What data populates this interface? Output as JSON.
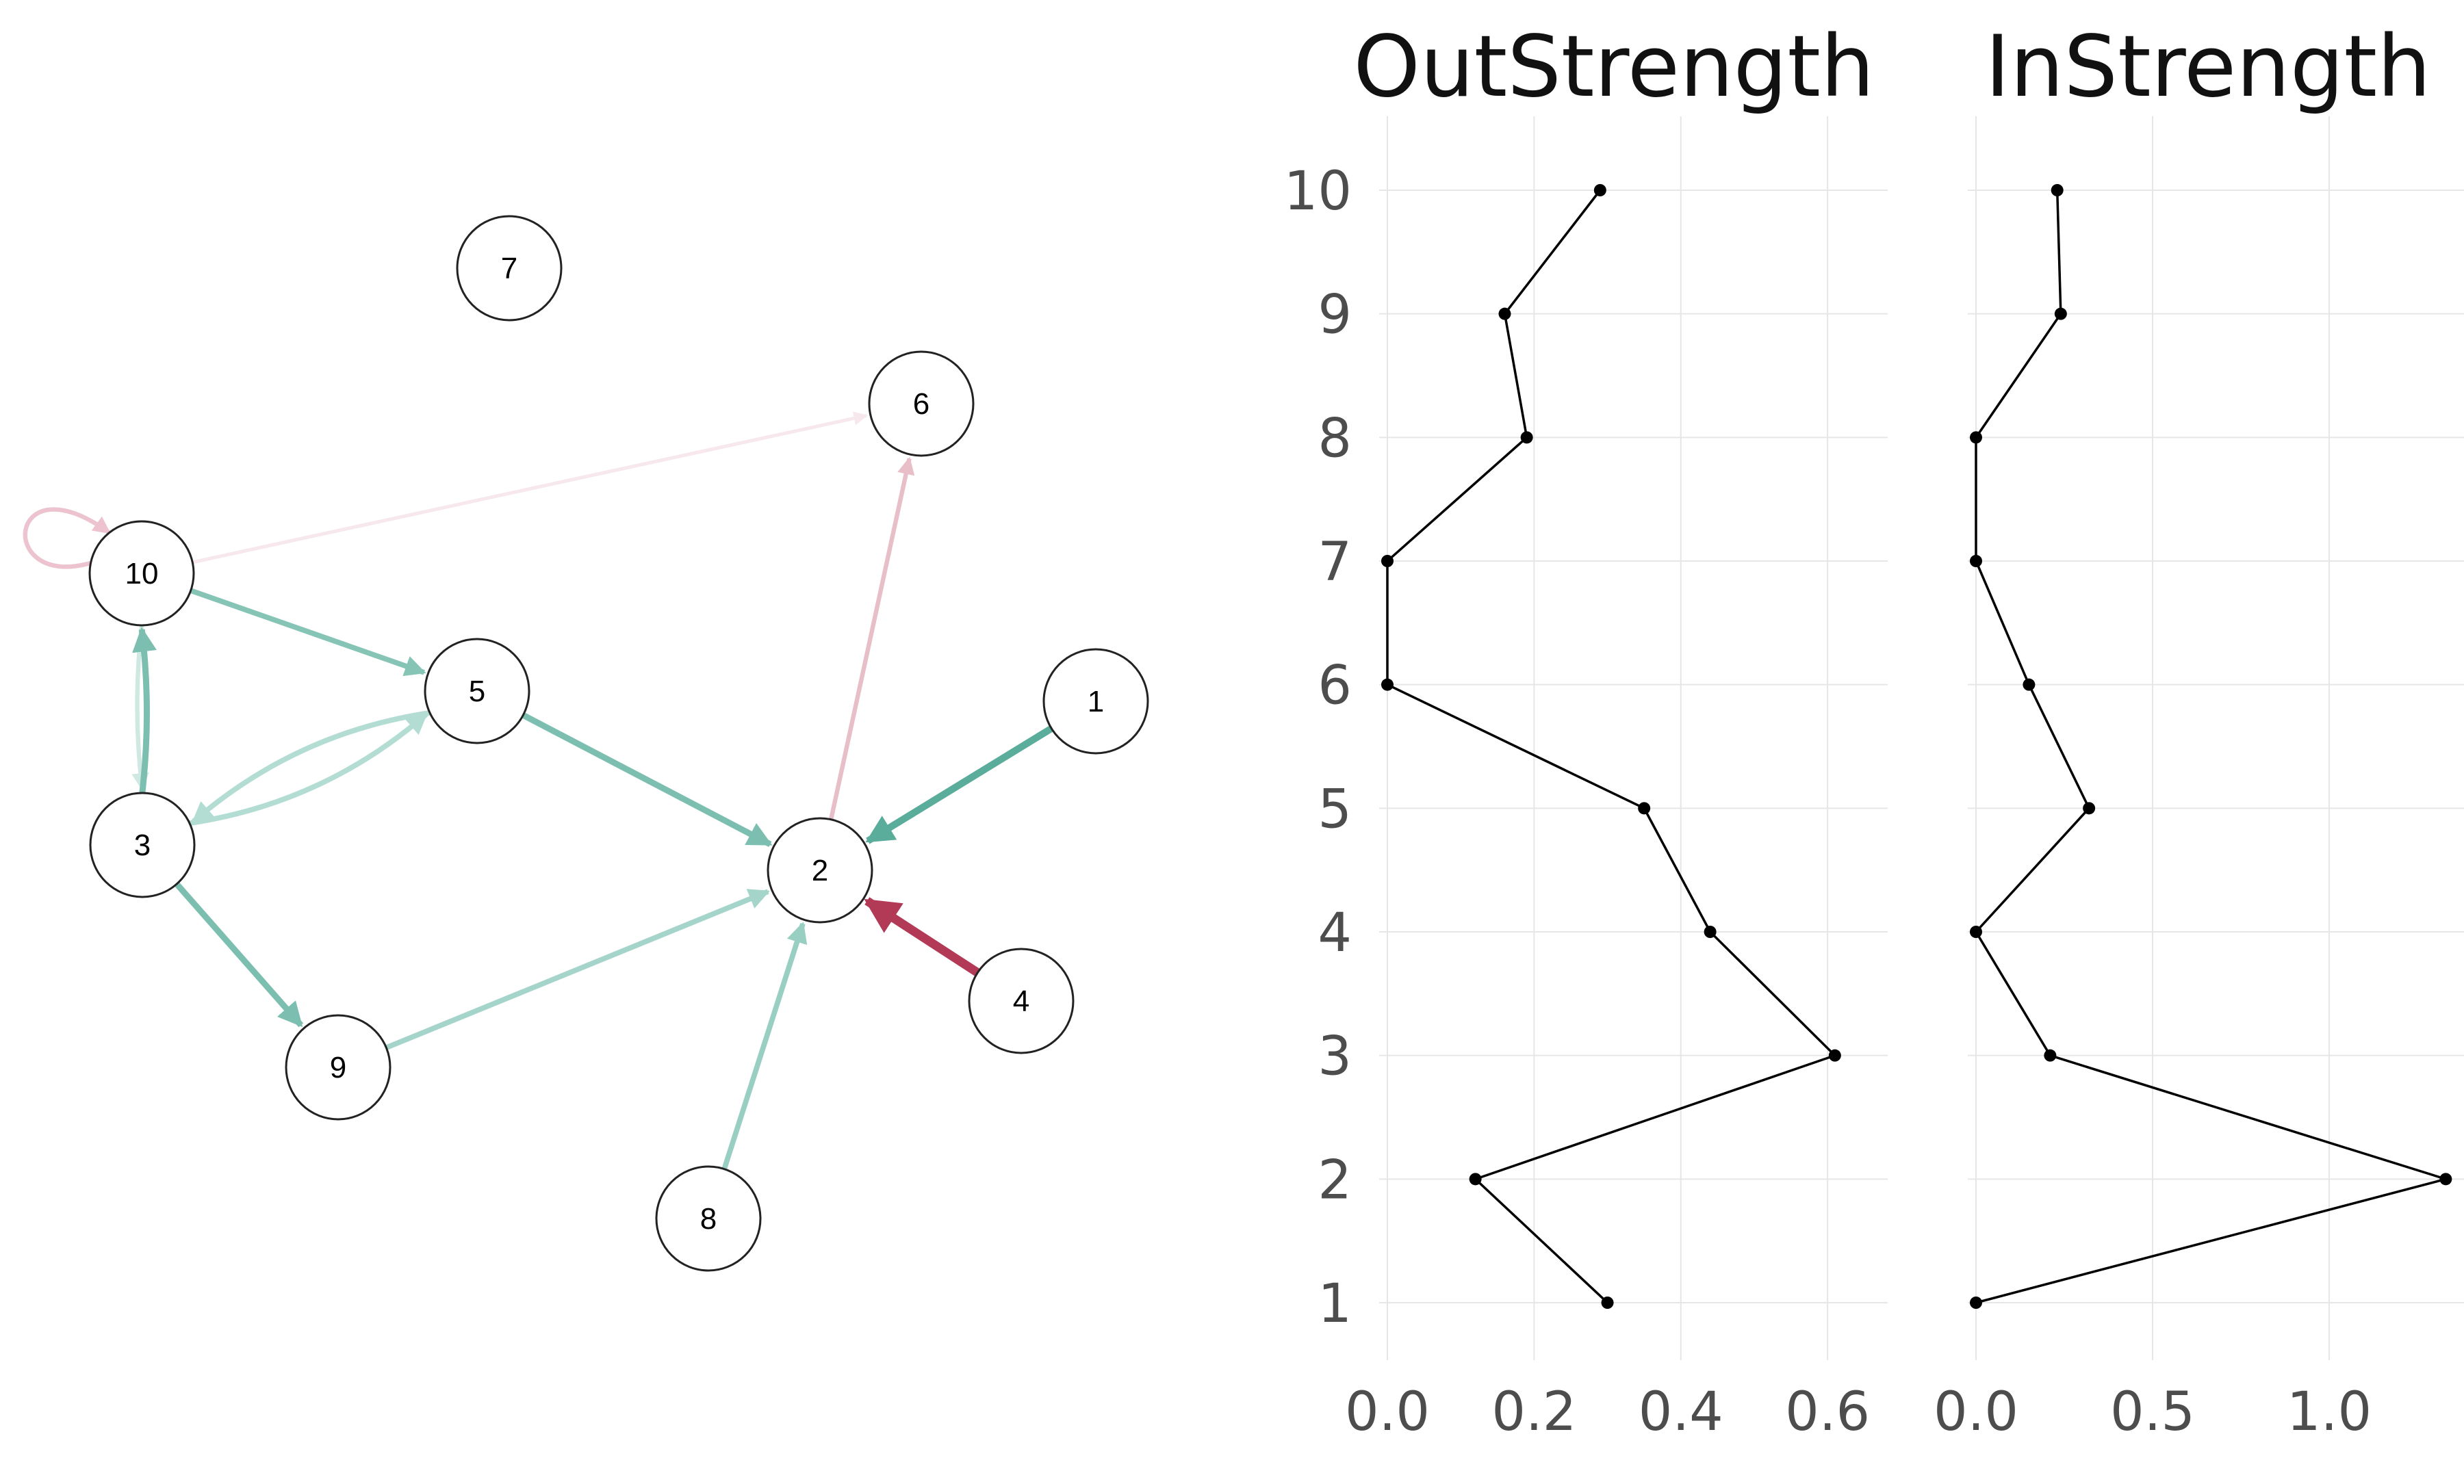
{
  "chart_data": [
    {
      "type": "network",
      "nodes": [
        "1",
        "2",
        "3",
        "4",
        "5",
        "6",
        "7",
        "8",
        "9",
        "10"
      ],
      "edges": [
        {
          "from": "1",
          "to": "2",
          "color": "#5aac9b",
          "weight": 3
        },
        {
          "from": "4",
          "to": "2",
          "color": "#b23a57",
          "weight": 4
        },
        {
          "from": "5",
          "to": "2",
          "color": "#7cbfb0",
          "weight": 2.5
        },
        {
          "from": "9",
          "to": "2",
          "color": "#a5d5ca",
          "weight": 2
        },
        {
          "from": "8",
          "to": "2",
          "color": "#98cfc2",
          "weight": 2
        },
        {
          "from": "2",
          "to": "6",
          "color": "#e8bfc9",
          "weight": 1.5
        },
        {
          "from": "10",
          "to": "6",
          "color": "#f6e8ec",
          "weight": 1
        },
        {
          "from": "10",
          "to": "5",
          "color": "#86c4b6",
          "weight": 2
        },
        {
          "from": "10",
          "to": "3",
          "color": "#cfe9e2",
          "weight": 1.5
        },
        {
          "from": "3",
          "to": "10",
          "color": "#7cbfb0",
          "weight": 2.5
        },
        {
          "from": "3",
          "to": "5",
          "color": "#b3ddd3",
          "weight": 2
        },
        {
          "from": "5",
          "to": "3",
          "color": "#b3ddd3",
          "weight": 2
        },
        {
          "from": "3",
          "to": "9",
          "color": "#7cbfb0",
          "weight": 2.5
        },
        {
          "from": "10",
          "to": "10",
          "color": "#ecc3cf",
          "weight": 1.5
        }
      ]
    },
    {
      "type": "line",
      "title": "OutStrength",
      "categories": [
        "1",
        "2",
        "3",
        "4",
        "5",
        "6",
        "7",
        "8",
        "9",
        "10"
      ],
      "x": [
        0.3,
        0.12,
        0.61,
        0.44,
        0.35,
        0.0,
        0.0,
        0.19,
        0.16,
        0.29
      ],
      "xlim": [
        0,
        0.64
      ],
      "xticks": [
        "0.0",
        "0.2",
        "0.4",
        "0.6"
      ],
      "yticks": [
        "1",
        "2",
        "3",
        "4",
        "5",
        "6",
        "7",
        "8",
        "9",
        "10"
      ],
      "grid": true
    },
    {
      "type": "line",
      "title": "InStrength",
      "categories": [
        "1",
        "2",
        "3",
        "4",
        "5",
        "6",
        "7",
        "8",
        "9",
        "10"
      ],
      "x": [
        0.0,
        1.33,
        0.21,
        0.0,
        0.32,
        0.15,
        0.0,
        0.0,
        0.24,
        0.23
      ],
      "xlim": [
        0,
        1.37
      ],
      "xticks": [
        "0.0",
        "0.5",
        "1.0"
      ],
      "grid": true
    }
  ]
}
